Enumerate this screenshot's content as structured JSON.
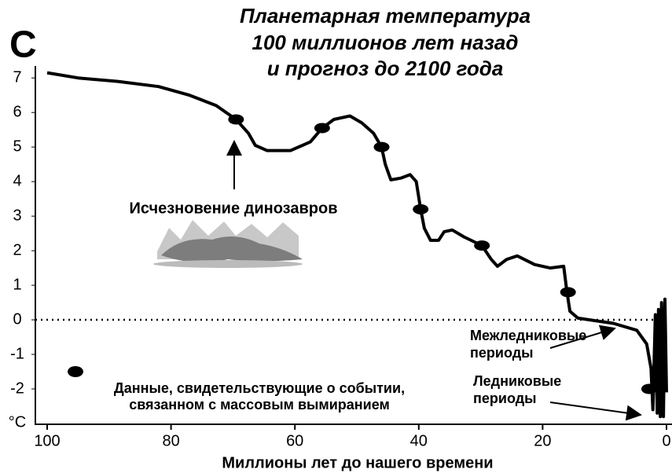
{
  "chart_data": {
    "type": "line",
    "panel": "C",
    "title": [
      "Планетарная температура",
      "100 миллионов лет назад",
      "и прогноз до 2100 года"
    ],
    "x_label": "Миллионы лет до нашего времени",
    "y_unit": "°C",
    "xlim": [
      100,
      0
    ],
    "xticks": [
      100,
      80,
      60,
      40,
      20,
      0
    ],
    "ylim": [
      -3,
      7.3
    ],
    "yticks": [
      7,
      6,
      5,
      4,
      3,
      2,
      1,
      0,
      -1,
      -2
    ],
    "reference_line": 0,
    "x": [
      100,
      95,
      88.6,
      82,
      77,
      72.7,
      69.5,
      67.5,
      66.4,
      64.5,
      60.7,
      57.5,
      55.6,
      53.7,
      51.1,
      49.2,
      47.3,
      46,
      45.4,
      44.5,
      42.9,
      41.4,
      40.4,
      39.7,
      39.1,
      38.1,
      36.8,
      35.9,
      34.6,
      32.7,
      29.8,
      28.3,
      27.3,
      25.8,
      24.1,
      21.3,
      18.8,
      16.6,
      16.1,
      15.6,
      14.3,
      8.6,
      4.8,
      3.2,
      2.5,
      2.2,
      1.8,
      1.5,
      1.3,
      1.0,
      0.8,
      0.5,
      0.25,
      0
    ],
    "series": [
      {
        "color": "#000000",
        "values": [
          7.15,
          7.0,
          6.9,
          6.75,
          6.5,
          6.2,
          5.8,
          5.4,
          5.05,
          4.9,
          4.9,
          5.15,
          5.55,
          5.8,
          5.9,
          5.7,
          5.4,
          5.0,
          4.5,
          4.05,
          4.1,
          4.2,
          4.0,
          3.2,
          2.65,
          2.3,
          2.3,
          2.55,
          2.6,
          2.4,
          2.15,
          1.75,
          1.55,
          1.75,
          1.85,
          1.6,
          1.5,
          1.55,
          0.85,
          0.25,
          0.05,
          -0.1,
          -0.3,
          -0.7,
          -1.4,
          -2.6,
          0.15,
          -2.7,
          0.3,
          -2.8,
          0.5,
          -2.8,
          0.6,
          -2.1
        ]
      }
    ],
    "events": {
      "name": [
        "Данные, свидетельствующие о событии,",
        "связанном с массовым вымиранием"
      ],
      "color": "#000000",
      "x": [
        69.5,
        55.6,
        46,
        39.7,
        29.8,
        15.9,
        2.8
      ],
      "values": [
        5.8,
        5.55,
        5.0,
        3.2,
        2.15,
        0.8,
        -2.0
      ]
    },
    "annotations": [
      [
        "Исчезновение динозавров"
      ],
      [
        "Межледниковые",
        "периоды"
      ],
      [
        "Ледниковые",
        "периоды"
      ]
    ]
  }
}
